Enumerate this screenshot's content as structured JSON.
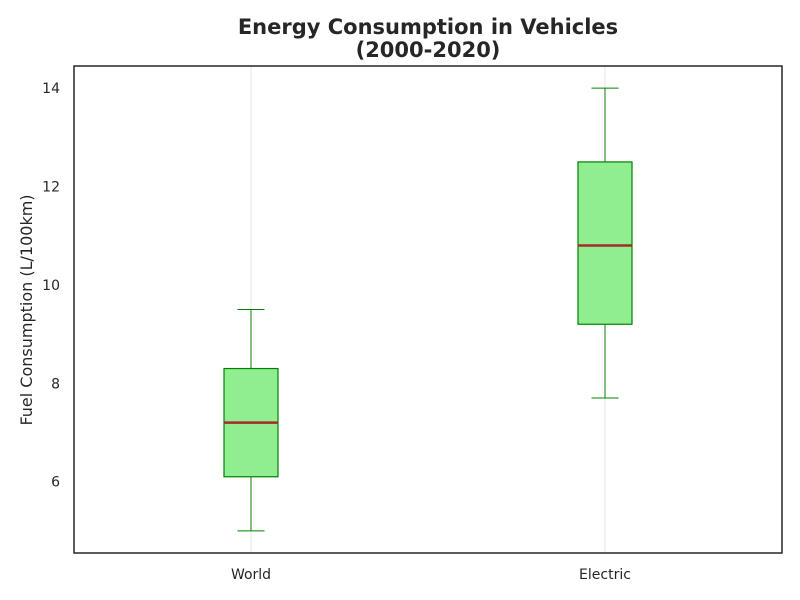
{
  "chart_data": {
    "type": "boxplot",
    "title_line1": "Energy Consumption in Vehicles",
    "title_line2": "(2000-2020)",
    "xlabel": "",
    "ylabel": "Fuel Consumption (L/100km)",
    "categories": [
      "World",
      "Electric"
    ],
    "boxes": [
      {
        "category": "World",
        "whisker_low": 5.0,
        "q1": 6.1,
        "median": 7.2,
        "q3": 8.3,
        "whisker_high": 9.5
      },
      {
        "category": "Electric",
        "whisker_low": 7.7,
        "q1": 9.2,
        "median": 10.8,
        "q3": 12.5,
        "whisker_high": 14.0
      }
    ],
    "ylim": [
      4.55,
      14.45
    ],
    "yticks": [
      6,
      8,
      10,
      12,
      14
    ],
    "grid": {
      "x": true,
      "y": false
    },
    "colors": {
      "box_fill": "#90ee90",
      "box_edge": "#008000",
      "whisker": "#008000",
      "median": "#a52a2a",
      "grid": "#e6e6e6",
      "axes": "#262626"
    }
  }
}
